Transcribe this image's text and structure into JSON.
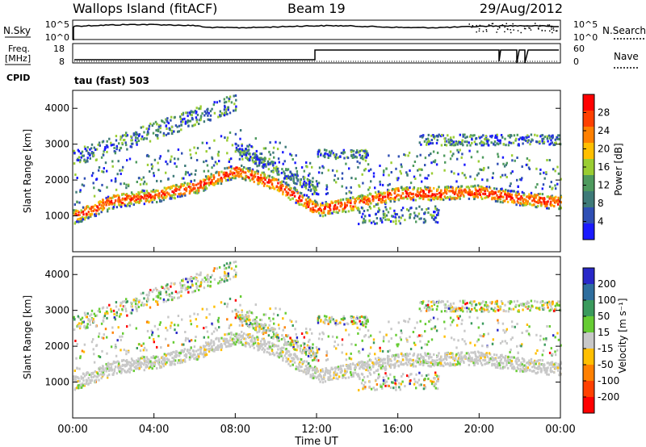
{
  "header": {
    "station": "Wallops Island (fitACF)",
    "beam": "Beam 19",
    "date": "29/Aug/2012"
  },
  "noise_panel": {
    "left_label": "N.Sky",
    "left_ticks": [
      "10^5",
      "10^0"
    ],
    "right_ticks": [
      "10^5",
      "10^0"
    ],
    "right_label": "N.Search"
  },
  "freq_panel": {
    "left_label_1": "Freq.",
    "left_label_2": "[MHz]",
    "left_ticks": [
      "18",
      "8"
    ],
    "right_ticks": [
      "60",
      "0"
    ],
    "right_label": "Nave",
    "cpid_label": "CPID",
    "mode_label": "tau (fast) 503"
  },
  "x_axis": {
    "label": "Time UT",
    "ticks": [
      "00:00",
      "04:00",
      "08:00",
      "12:00",
      "16:00",
      "20:00",
      "00:00"
    ]
  },
  "power_panel": {
    "ylabel": "Slant Range [km]",
    "yticks": [
      "1000",
      "2000",
      "3000",
      "4000"
    ],
    "colorbar_label": "Power [dB]",
    "colorbar_ticks": [
      "4",
      "8",
      "12",
      "16",
      "20",
      "24",
      "28"
    ],
    "colors": [
      "#1a1aff",
      "#2f4fb4",
      "#3e7a78",
      "#4e9a5e",
      "#9acd32",
      "#ffbf00",
      "#ff8000",
      "#ff4000",
      "#ff0000"
    ]
  },
  "velocity_panel": {
    "ylabel": "Slant Range [km]",
    "yticks": [
      "1000",
      "2000",
      "3000",
      "4000"
    ],
    "colorbar_label": "Velocity [m s⁻¹]",
    "colorbar_ticks": [
      "200",
      "100",
      "50",
      "15",
      "-15",
      "-50",
      "-100",
      "-200"
    ],
    "colors": [
      "#2828c8",
      "#2e6e9e",
      "#3a9a5c",
      "#66cc33",
      "#c8c8c8",
      "#ffbf00",
      "#ff8000",
      "#ff4000",
      "#ff0000"
    ]
  },
  "chart_data": {
    "type": "heatmap",
    "title": "Wallops Island (fitACF) Beam 19 29/Aug/2012",
    "xlabel": "Time UT",
    "ylabel": "Slant Range [km]",
    "xlim": [
      "00:00",
      "24:00"
    ],
    "ylim": [
      0,
      4500
    ],
    "legend": "right",
    "series": [
      {
        "name": "Power [dB]",
        "color_range": [
          0,
          30
        ],
        "bands_km_by_hour": {
          "hours": [
            0,
            2,
            4,
            6,
            8,
            10,
            12,
            14,
            16,
            18,
            20,
            22,
            24
          ],
          "main_band_km": [
            1000,
            1450,
            1600,
            1850,
            2300,
            1900,
            1200,
            1400,
            1650,
            1650,
            1700,
            1500,
            1400
          ]
        }
      },
      {
        "name": "Velocity [m s⁻¹]",
        "color_range": [
          -200,
          200
        ],
        "bands_km_by_hour": {
          "hours": [
            0,
            2,
            4,
            6,
            8,
            10,
            12,
            14,
            16,
            18,
            20,
            22,
            24
          ],
          "main_band_km": [
            1000,
            1450,
            1600,
            1850,
            2300,
            1900,
            1200,
            1400,
            1650,
            1650,
            1700,
            1500,
            1400
          ]
        }
      }
    ]
  }
}
